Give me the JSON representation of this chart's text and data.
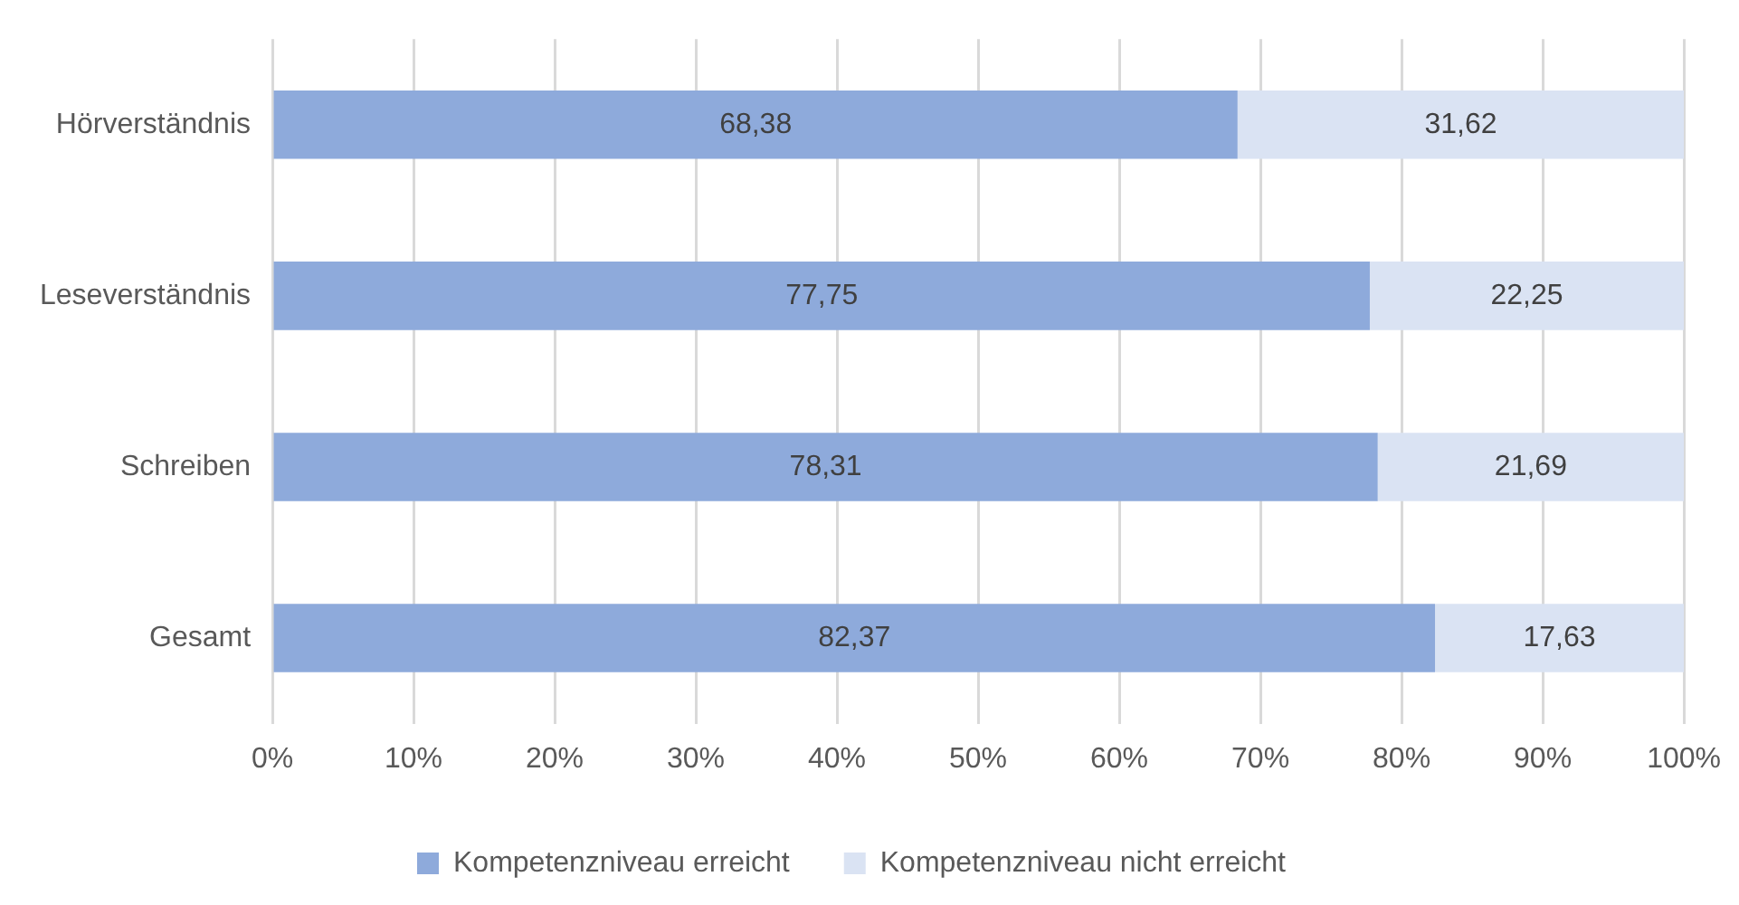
{
  "chart_data": {
    "type": "bar",
    "orientation": "horizontal",
    "stacked": true,
    "categories": [
      "Hörverständnis",
      "Leseverständnis",
      "Schreiben",
      "Gesamt"
    ],
    "series": [
      {
        "name": "Kompetenzniveau erreicht",
        "color": "#8eaadb",
        "values": [
          68.38,
          77.75,
          78.31,
          82.37
        ],
        "value_labels": [
          "68,38",
          "77,75",
          "78,31",
          "82,37"
        ]
      },
      {
        "name": "Kompetenzniveau nicht erreicht",
        "color": "#dae3f3",
        "values": [
          31.62,
          22.25,
          21.69,
          17.63
        ],
        "value_labels": [
          "31,62",
          "22,25",
          "21,69",
          "17,63"
        ]
      }
    ],
    "xlim": [
      0,
      100
    ],
    "xticks": [
      {
        "value": 0,
        "label": "0%"
      },
      {
        "value": 10,
        "label": "10%"
      },
      {
        "value": 20,
        "label": "20%"
      },
      {
        "value": 30,
        "label": "30%"
      },
      {
        "value": 40,
        "label": "40%"
      },
      {
        "value": 50,
        "label": "50%"
      },
      {
        "value": 60,
        "label": "60%"
      },
      {
        "value": 70,
        "label": "70%"
      },
      {
        "value": 80,
        "label": "80%"
      },
      {
        "value": 90,
        "label": "90%"
      },
      {
        "value": 100,
        "label": "100%"
      }
    ],
    "grid": "x",
    "legend": "bottom"
  }
}
